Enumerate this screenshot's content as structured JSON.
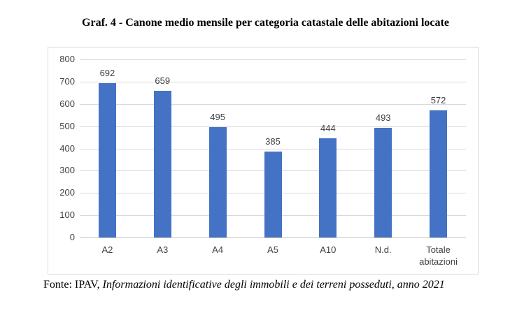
{
  "title": "Graf. 4 - Canone medio mensile per categoria catastale delle abitazioni locate",
  "footer": {
    "prefix": "Fonte: IPAV, ",
    "italic": "Informazioni identificative degli immobili e dei terreni posseduti, anno 2021"
  },
  "chart_data": {
    "type": "bar",
    "title": "Graf. 4 - Canone medio mensile per categoria catastale delle abitazioni locate",
    "categories": [
      "A2",
      "A3",
      "A4",
      "A5",
      "A10",
      "N.d.",
      "Totale abitazioni"
    ],
    "values": [
      692,
      659,
      495,
      385,
      444,
      493,
      572
    ],
    "xlabel": "",
    "ylabel": "",
    "ylim": [
      0,
      800
    ],
    "ytick_interval": 100,
    "grid": true,
    "legend_position": "none",
    "bar_color": "#4472C4",
    "gridline_color": "#d9d9d9",
    "label_color": "#404040"
  }
}
